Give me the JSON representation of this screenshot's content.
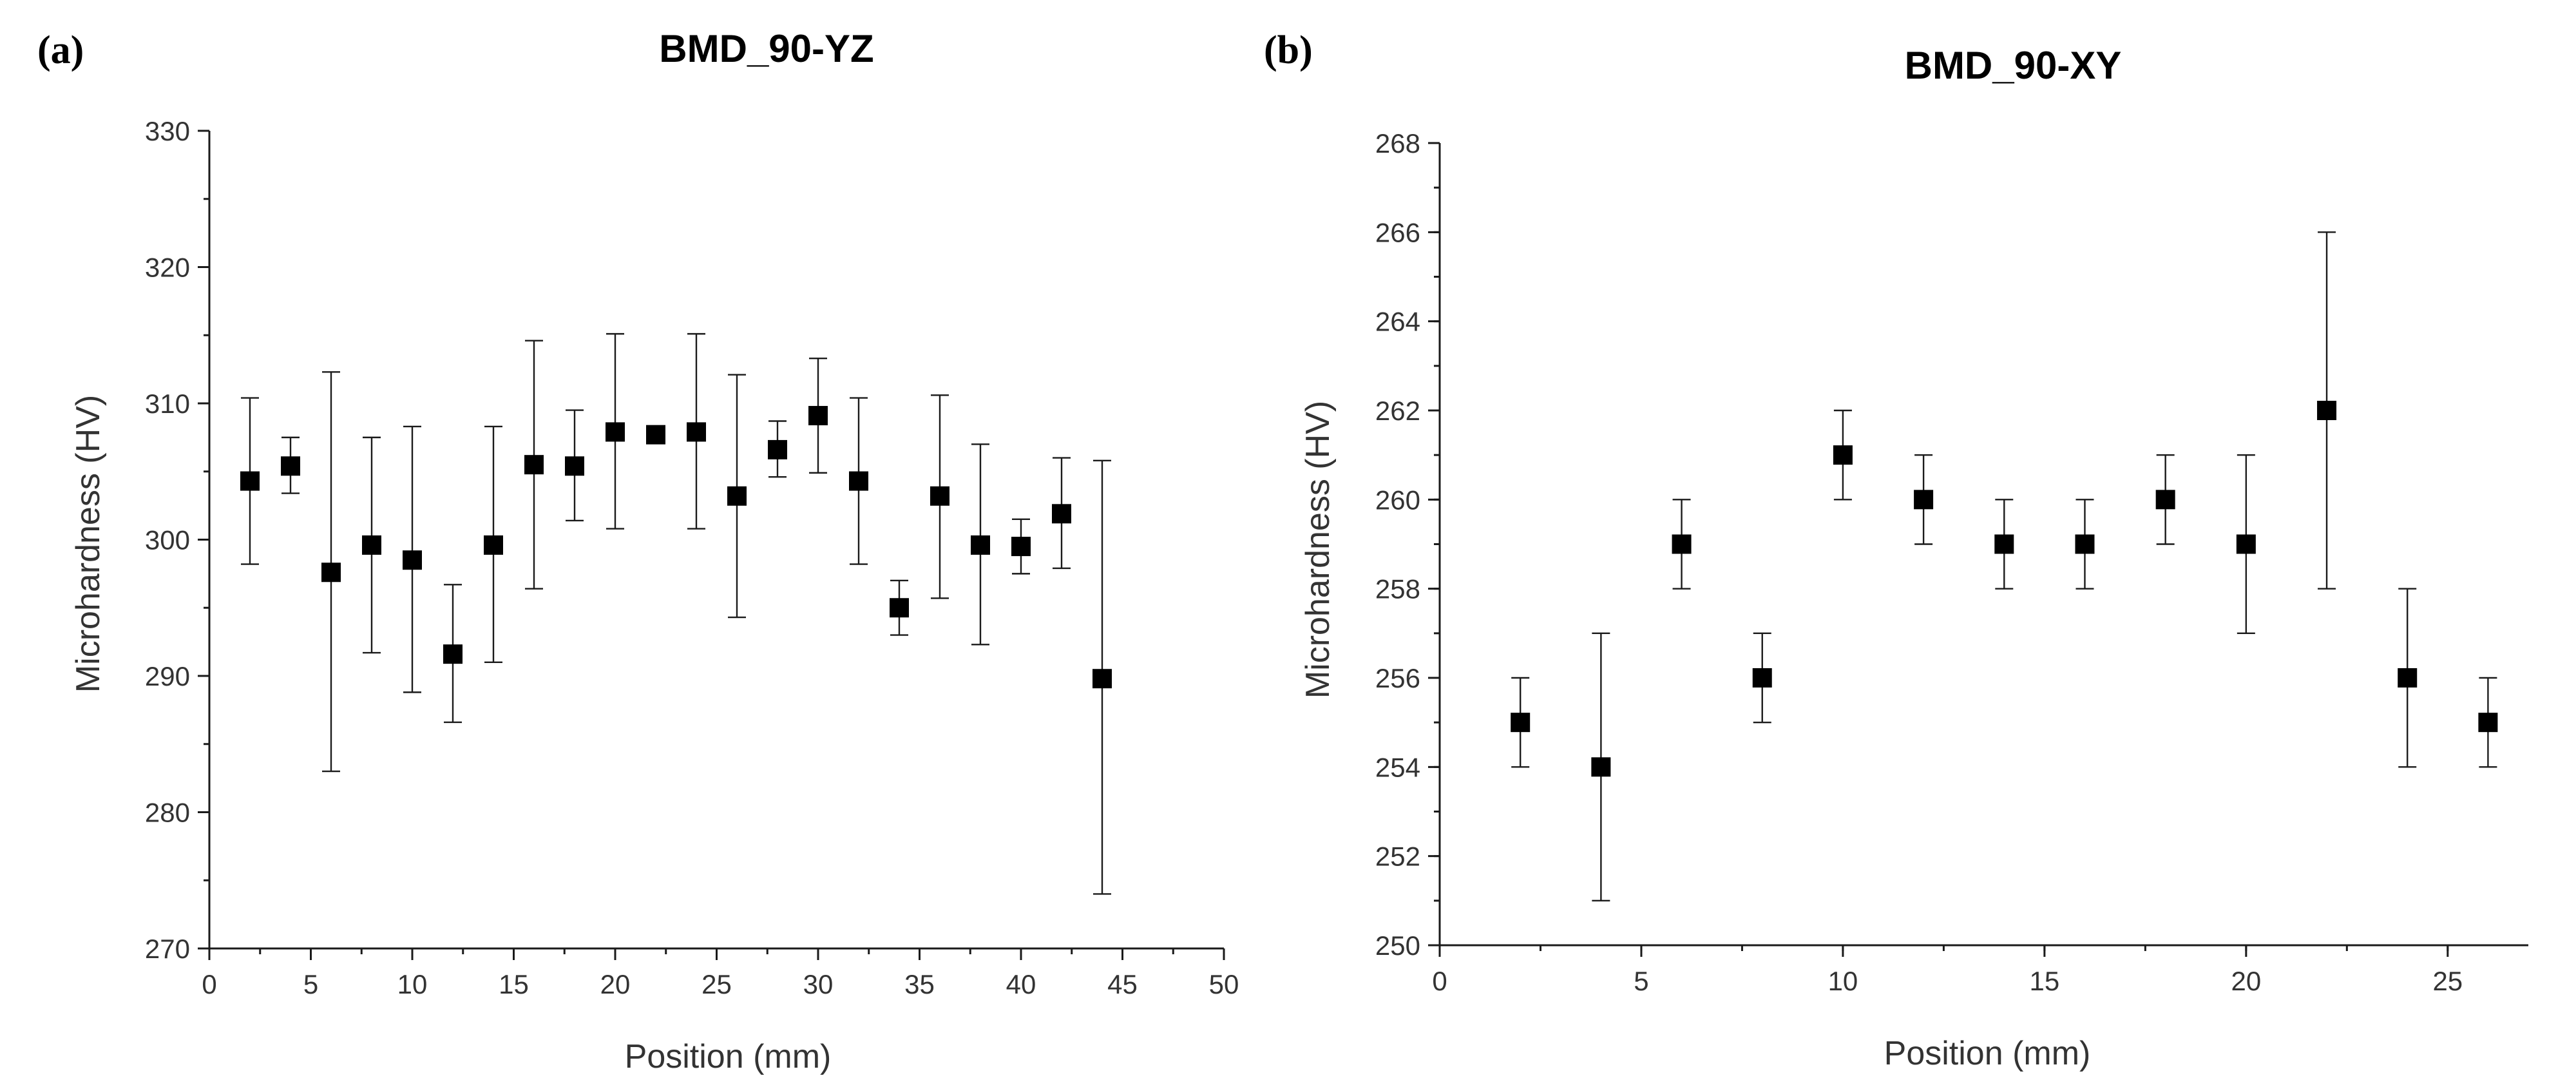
{
  "chart_data": [
    {
      "type": "scatter",
      "panel_label": "(a)",
      "title": "BMD_90-YZ",
      "xlabel": "Position (mm)",
      "ylabel": "Microhardness (HV)",
      "xlim": [
        0,
        50
      ],
      "ylim": [
        270,
        330
      ],
      "xticks": [
        0,
        5,
        10,
        15,
        20,
        25,
        30,
        35,
        40,
        45,
        50
      ],
      "yticks": [
        270,
        280,
        290,
        300,
        310,
        320,
        330
      ],
      "x_minor_step": 2.5,
      "y_minor_step": 5,
      "grid": false,
      "series": [
        {
          "name": "BMD_90-YZ",
          "x": [
            2,
            4,
            6,
            8,
            10,
            12,
            14,
            16,
            18,
            20,
            22,
            24,
            26,
            28,
            30,
            32,
            34,
            36,
            38,
            40,
            42,
            44
          ],
          "y": [
            304.3,
            305.4,
            297.6,
            299.6,
            298.5,
            291.6,
            299.6,
            305.5,
            305.4,
            307.9,
            307.7,
            307.9,
            303.2,
            306.6,
            309.1,
            304.3,
            295.0,
            303.2,
            299.6,
            299.5,
            301.9,
            289.8
          ],
          "err_low": [
            298.2,
            303.4,
            283.0,
            291.7,
            288.8,
            286.6,
            291.0,
            296.4,
            301.4,
            300.8,
            307.7,
            300.8,
            294.3,
            304.6,
            304.9,
            298.2,
            293.0,
            295.7,
            292.3,
            297.5,
            297.9,
            274.0
          ],
          "err_high": [
            310.4,
            307.5,
            312.3,
            307.5,
            308.3,
            296.7,
            308.3,
            314.6,
            309.5,
            315.1,
            307.7,
            315.1,
            312.1,
            308.7,
            313.3,
            310.4,
            297.0,
            310.6,
            307.0,
            301.5,
            306.0,
            305.8
          ]
        }
      ]
    },
    {
      "type": "scatter",
      "panel_label": "(b)",
      "title": "BMD_90-XY",
      "xlabel": "Position (mm)",
      "ylabel": "Microhardness (HV)",
      "xlim": [
        0,
        27
      ],
      "ylim": [
        250,
        268
      ],
      "xticks": [
        0,
        5,
        10,
        15,
        20,
        25
      ],
      "yticks": [
        250,
        252,
        254,
        256,
        258,
        260,
        262,
        264,
        266,
        268
      ],
      "x_minor_step": 2.5,
      "y_minor_step": 1,
      "grid": false,
      "series": [
        {
          "name": "BMD_90-XY",
          "x": [
            2,
            4,
            6,
            8,
            10,
            12,
            14,
            16,
            18,
            20,
            22,
            24,
            26
          ],
          "y": [
            255,
            254,
            259,
            256,
            261,
            260,
            259,
            259,
            260,
            259,
            262,
            256,
            255
          ],
          "err_low": [
            254,
            251,
            258,
            255,
            260,
            259,
            258,
            258,
            259,
            257,
            258,
            254,
            254
          ],
          "err_high": [
            256,
            257,
            260,
            257,
            262,
            261,
            260,
            260,
            261,
            261,
            266,
            258,
            256
          ]
        }
      ]
    }
  ]
}
